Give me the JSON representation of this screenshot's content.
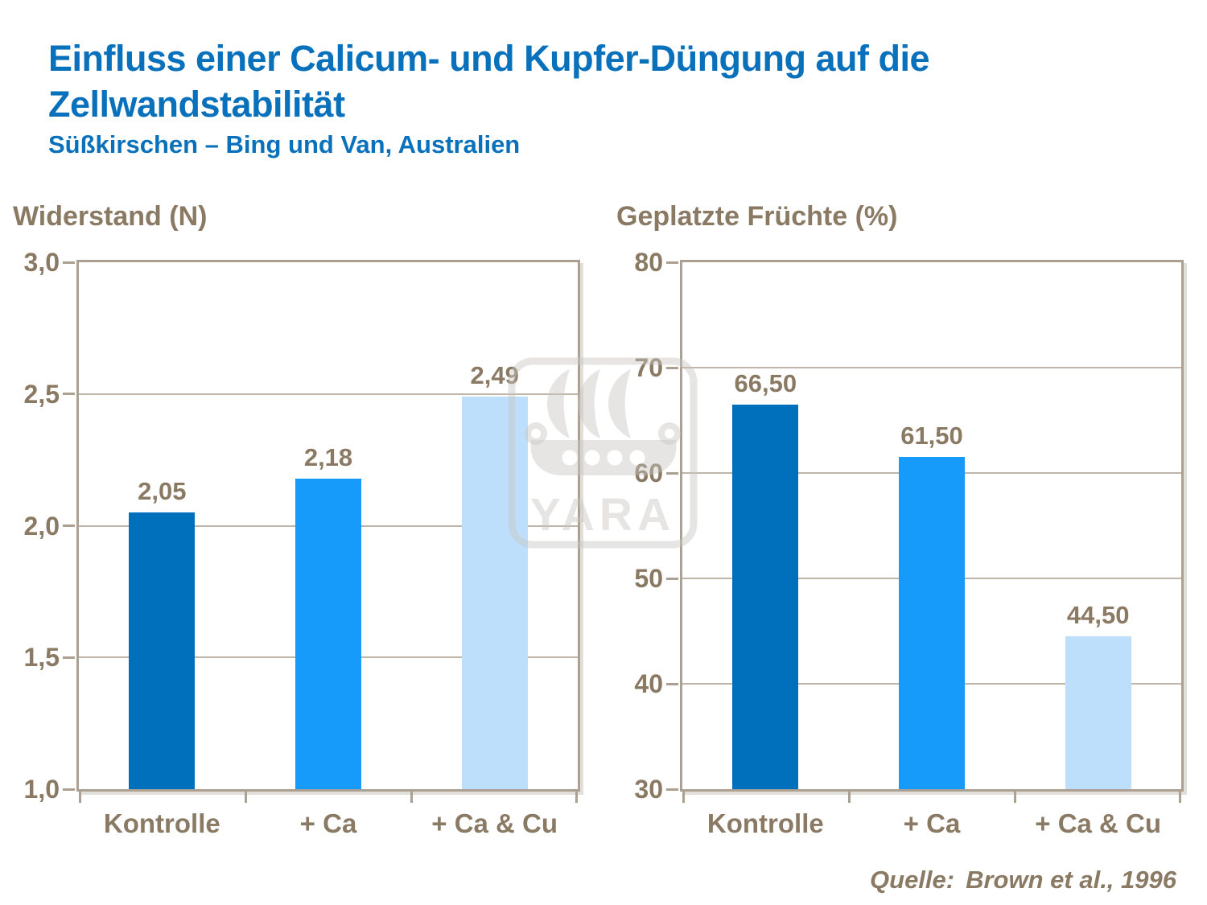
{
  "header": {
    "title_line1": "Einfluss einer Calicum- und Kupfer-Düngung auf die",
    "title_line2": "Zellwandstabilität",
    "subtitle": "Süßkirschen – Bing und Van, Australien"
  },
  "chart_data": [
    {
      "type": "bar",
      "title": "Widerstand (N)",
      "categories": [
        "Kontrolle",
        "+ Ca",
        "+ Ca & Cu"
      ],
      "values": [
        2.05,
        2.18,
        2.49
      ],
      "value_labels": [
        "2,05",
        "2,18",
        "2,49"
      ],
      "ylim": [
        1.0,
        3.0
      ],
      "yticks": [
        {
          "value": 3.0,
          "label": "3,0"
        },
        {
          "value": 2.5,
          "label": "2,5"
        },
        {
          "value": 2.0,
          "label": "2,0"
        },
        {
          "value": 1.5,
          "label": "1,5"
        },
        {
          "value": 1.0,
          "label": "1,0"
        }
      ],
      "gridlines": [
        2.5,
        2.0,
        1.5
      ],
      "grid": "horizontal",
      "legend": "none"
    },
    {
      "type": "bar",
      "title": "Geplatzte Früchte (%)",
      "categories": [
        "Kontrolle",
        "+ Ca",
        "+ Ca & Cu"
      ],
      "values": [
        66.5,
        61.5,
        44.5
      ],
      "value_labels": [
        "66,50",
        "61,50",
        "44,50"
      ],
      "ylim": [
        30,
        80
      ],
      "yticks": [
        {
          "value": 80,
          "label": "80"
        },
        {
          "value": 70,
          "label": "70"
        },
        {
          "value": 60,
          "label": "60"
        },
        {
          "value": 50,
          "label": "50"
        },
        {
          "value": 40,
          "label": "40"
        },
        {
          "value": 30,
          "label": "30"
        }
      ],
      "gridlines": [
        70,
        60,
        50,
        40
      ],
      "grid": "horizontal",
      "legend": "none"
    }
  ],
  "colors": {
    "title_blue": "#0971BB",
    "label_brown": "#8A7A64",
    "plot_border": "#ABA092",
    "gridline": "#BFB5A9",
    "bar_colors": [
      "#006FBC",
      "#169BFB",
      "#BEDFFC"
    ],
    "watermark_gray": "rgba(200,198,194,0.45)"
  },
  "watermark": {
    "text": "YARA"
  },
  "source": {
    "label": "Quelle:",
    "text": "Brown et al., 1996"
  }
}
